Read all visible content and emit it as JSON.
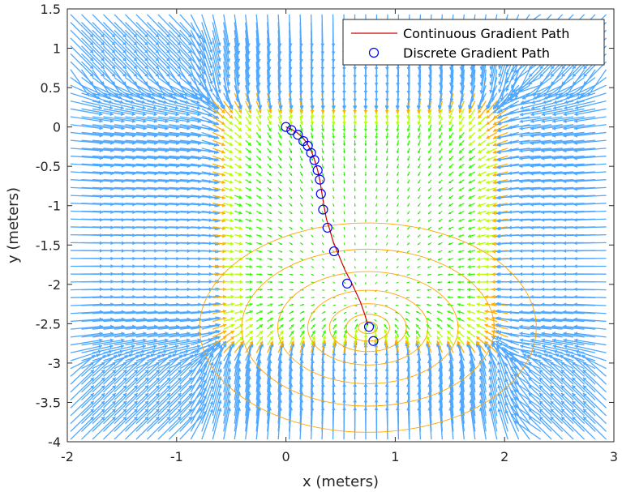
{
  "chart_data": {
    "type": "quiver",
    "title": "",
    "xlabel": "x (meters)",
    "ylabel": "y (meters)",
    "xlim": [
      -2,
      3
    ],
    "ylim": [
      -4,
      1.5
    ],
    "xticks": [
      -2,
      -1,
      0,
      1,
      2,
      3
    ],
    "xtick_labels": [
      "-2",
      "-1",
      "0",
      "1",
      "2",
      "3"
    ],
    "yticks": [
      1.5,
      1,
      0.5,
      0,
      -0.5,
      -1,
      -1.5,
      -2,
      -2.5,
      -3,
      -3.5,
      -4
    ],
    "ytick_labels": [
      "1.5",
      "1",
      "0.5",
      "0",
      "-0.5",
      "-1",
      "-1.5",
      "-2",
      "-2.5",
      "-3",
      "-3.5",
      "-4"
    ],
    "grid": false,
    "legend_position": "top-right",
    "goal": {
      "x": 0.75,
      "y": -2.55
    },
    "series": [
      {
        "name": "Continuous Gradient Path",
        "type": "line",
        "color": "#cc0000",
        "x": [
          0,
          0.05,
          0.1,
          0.15,
          0.19,
          0.23,
          0.26,
          0.29,
          0.31,
          0.33,
          0.35,
          0.37,
          0.4,
          0.43,
          0.48,
          0.54,
          0.6,
          0.64,
          0.68,
          0.72,
          0.75
        ],
        "y": [
          0,
          -0.03,
          -0.07,
          -0.13,
          -0.2,
          -0.3,
          -0.41,
          -0.55,
          -0.68,
          -0.85,
          -1.02,
          -1.17,
          -1.3,
          -1.45,
          -1.62,
          -1.82,
          -1.98,
          -2.1,
          -2.22,
          -2.38,
          -2.52
        ]
      },
      {
        "name": "Discrete Gradient Path",
        "type": "scatter",
        "marker": "circle",
        "color": "#0000ff",
        "x": [
          0,
          0.05,
          0.11,
          0.16,
          0.2,
          0.23,
          0.26,
          0.29,
          0.31,
          0.32,
          0.34,
          0.38,
          0.44,
          0.56,
          0.76,
          0.8
        ],
        "y": [
          0,
          -0.04,
          -0.1,
          -0.18,
          -0.24,
          -0.33,
          -0.42,
          -0.55,
          -0.67,
          -0.85,
          -1.05,
          -1.28,
          -1.58,
          -1.99,
          -2.54,
          -2.72
        ]
      }
    ]
  }
}
